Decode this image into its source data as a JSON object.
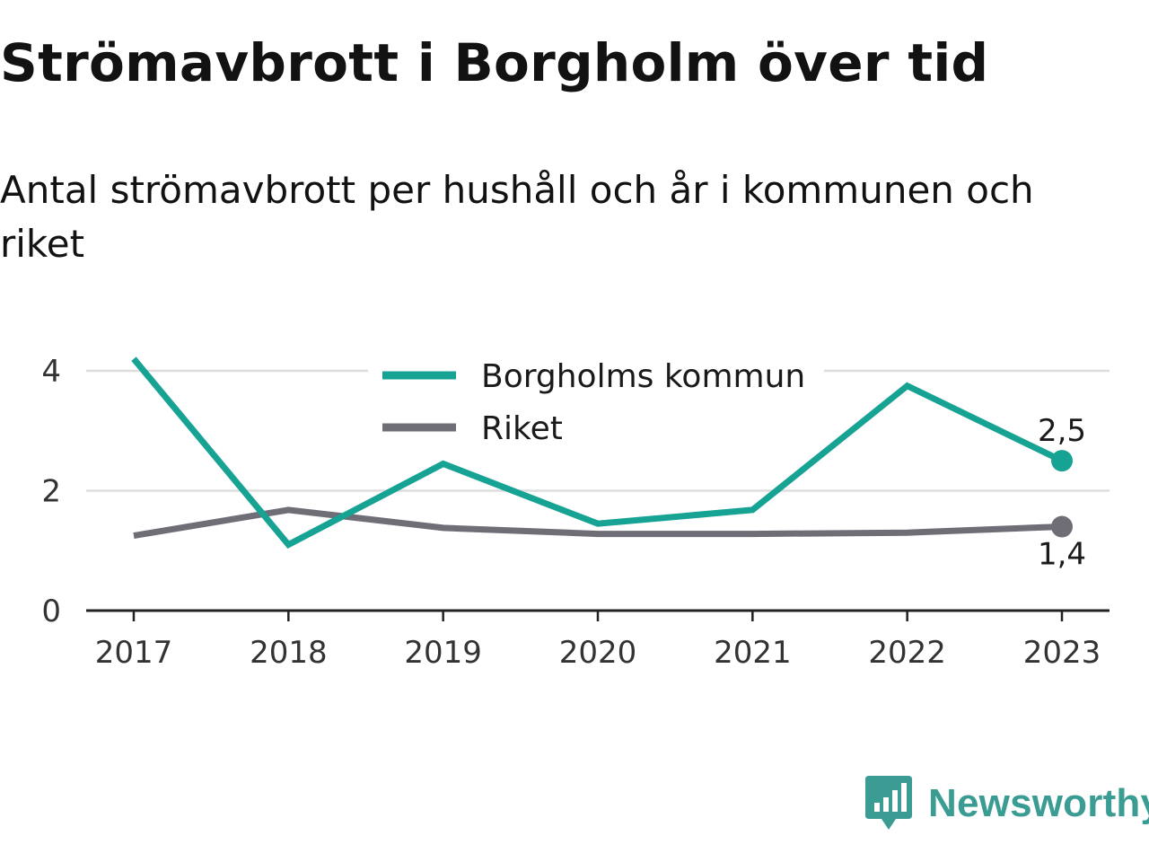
{
  "title": "Strömavbrott i Borgholm över tid",
  "subtitle": "Antal strömavbrott per hushåll och år i kommunen och riket",
  "brand": {
    "name": "Newsworthy",
    "icon": "bar-chart-speech-bubble-icon",
    "color": "#3a9c92"
  },
  "chart_data": {
    "type": "line",
    "x": [
      "2017",
      "2018",
      "2019",
      "2020",
      "2021",
      "2022",
      "2023"
    ],
    "ylim": [
      0,
      4.3
    ],
    "yticks": [
      0,
      2,
      4
    ],
    "grid": true,
    "legend_position": "top-center",
    "series": [
      {
        "name": "Borgholms kommun",
        "color": "#16a394",
        "values": [
          4.2,
          1.1,
          2.45,
          1.45,
          1.68,
          3.75,
          2.5
        ],
        "end_label": "2,5"
      },
      {
        "name": "Riket",
        "color": "#6f6e77",
        "values": [
          1.25,
          1.68,
          1.38,
          1.28,
          1.28,
          1.3,
          1.4
        ],
        "end_label": "1,4"
      }
    ]
  }
}
